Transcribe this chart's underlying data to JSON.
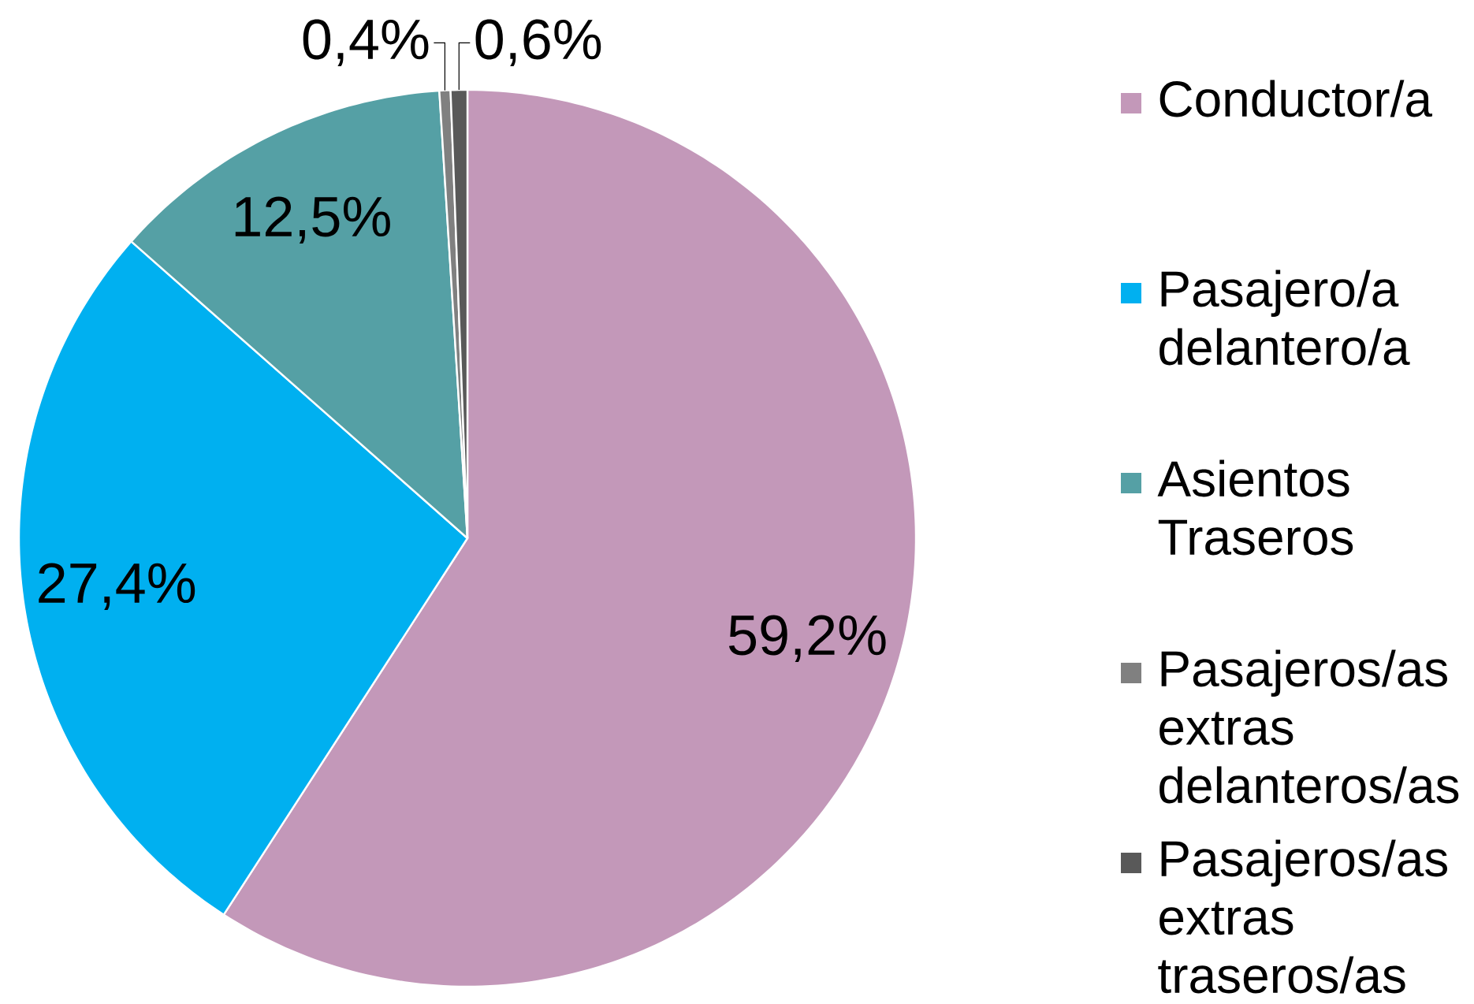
{
  "chart_data": {
    "type": "pie",
    "categories": [
      "Conductor/a",
      "Pasajero/a delantero/a",
      "Asientos Traseros",
      "Pasajeros/as extras delanteros/as",
      "Pasajeros/as extras traseros/as"
    ],
    "values": [
      59.2,
      27.4,
      12.5,
      0.4,
      0.6
    ],
    "colors": [
      "#c398b9",
      "#00b0f0",
      "#55a0a5",
      "#808080",
      "#595959"
    ],
    "value_labels": [
      "59,2%",
      "27,4%",
      "12,5%",
      "0,4%",
      "0,6%"
    ],
    "legend": "right"
  }
}
